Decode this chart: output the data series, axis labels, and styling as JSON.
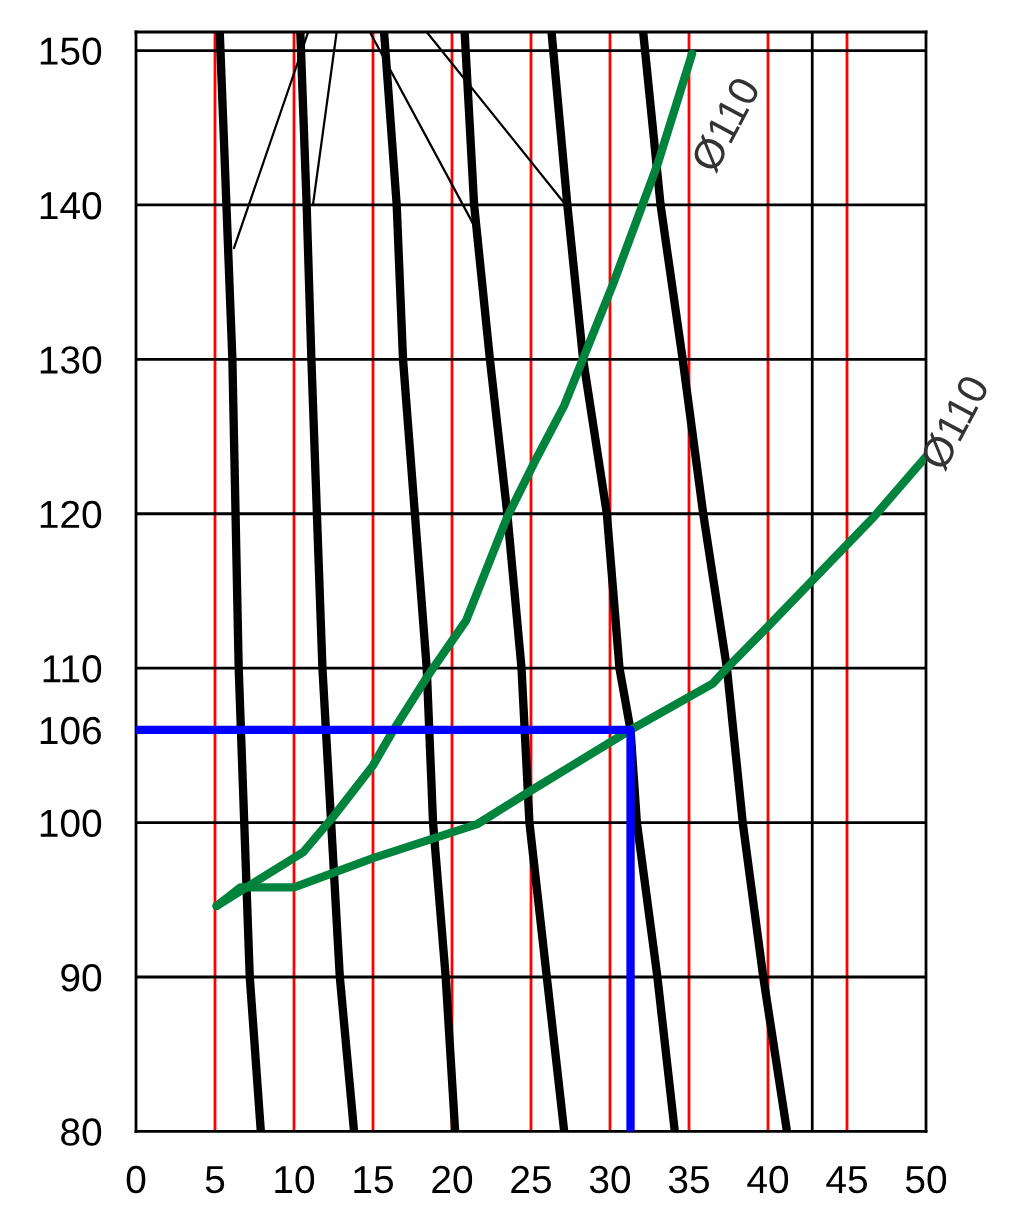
{
  "chart_data": {
    "type": "line",
    "xlim": [
      0,
      50
    ],
    "ylim": [
      80,
      151.2
    ],
    "xticks": [
      0,
      5,
      10,
      15,
      20,
      25,
      30,
      35,
      40,
      45,
      50
    ],
    "yticks": [
      80,
      90,
      100,
      106,
      110,
      120,
      130,
      140,
      150
    ],
    "grid": false,
    "legend": false,
    "marker": "none",
    "line_style": "solid",
    "ref_lines": [
      {
        "axis": "x",
        "value": 5,
        "color": "#ff0000"
      },
      {
        "axis": "x",
        "value": 10,
        "color": "#ff0000"
      },
      {
        "axis": "x",
        "value": 15,
        "color": "#ff0000"
      },
      {
        "axis": "x",
        "value": 20,
        "color": "#ff0000"
      },
      {
        "axis": "x",
        "value": 25,
        "color": "#ff0000"
      },
      {
        "axis": "x",
        "value": 30,
        "color": "#ff0000"
      },
      {
        "axis": "x",
        "value": 35,
        "color": "#ff0000"
      },
      {
        "axis": "x",
        "value": 40,
        "color": "#ff0000"
      },
      {
        "axis": "x",
        "value": 45,
        "color": "#ff0000"
      },
      {
        "axis": "x",
        "value": 42.8,
        "color": "#000000"
      },
      {
        "axis": "y",
        "value": 90,
        "color": "#000000"
      },
      {
        "axis": "y",
        "value": 100,
        "color": "#000000"
      },
      {
        "axis": "y",
        "value": 110,
        "color": "#000000"
      },
      {
        "axis": "y",
        "value": 120,
        "color": "#000000"
      },
      {
        "axis": "y",
        "value": 130,
        "color": "#000000"
      },
      {
        "axis": "y",
        "value": 140,
        "color": "#000000"
      },
      {
        "axis": "y",
        "value": 150,
        "color": "#000000"
      }
    ],
    "annotations": [
      {
        "text": "Ø110",
        "x": 35.5,
        "y": 143
      },
      {
        "text": "Ø110",
        "x": 50,
        "y": 123.7
      }
    ],
    "series": [
      {
        "color": "#000000",
        "x": [
          5.3,
          6.1,
          6.5,
          7.2,
          7.9
        ],
        "values": [
          151.2,
          130,
          110,
          90,
          80
        ]
      },
      {
        "color": "#000000",
        "x": [
          10.4,
          10.8,
          11.1,
          11.8,
          12.9,
          13.8
        ],
        "values": [
          151.2,
          140,
          130,
          110,
          90,
          80
        ]
      },
      {
        "color": "#000000",
        "x": [
          15.7,
          16.5,
          16.9,
          18.4,
          18.8,
          19.6,
          20.2
        ],
        "values": [
          151.2,
          140,
          130,
          110,
          100,
          90,
          80
        ]
      },
      {
        "color": "#000000",
        "x": [
          20.8,
          21.4,
          22.4,
          23.5,
          24.4,
          24.9,
          26.0,
          27.1
        ],
        "values": [
          151.2,
          140,
          130,
          120,
          110,
          100,
          90,
          80
        ]
      },
      {
        "color": "#000000",
        "x": [
          26.3,
          27.3,
          28.3,
          29.8,
          30.6,
          31.3,
          31.7,
          33.0,
          34.1
        ],
        "values": [
          151.2,
          140,
          130,
          120,
          110,
          106,
          100,
          90,
          80
        ]
      },
      {
        "color": "#000000",
        "x": [
          32.1,
          33.2,
          34.6,
          35.9,
          37.4,
          38.4,
          39.7,
          41.2
        ],
        "values": [
          151.2,
          140,
          130,
          120,
          110,
          100,
          90,
          80
        ]
      },
      {
        "color": "#000000",
        "x": [
          10.9,
          6.2
        ],
        "values": [
          151.2,
          137.2
        ]
      },
      {
        "color": "#000000",
        "x": [
          12.7,
          11.2
        ],
        "values": [
          151.2,
          140
        ]
      },
      {
        "color": "#000000",
        "x": [
          14.8,
          21.8
        ],
        "values": [
          151.2,
          137.9
        ]
      },
      {
        "color": "#000000",
        "x": [
          18.4,
          27.2
        ],
        "values": [
          151.2,
          140
        ]
      },
      {
        "color": "#00843d",
        "x": [
          5.1,
          10.6,
          12.5,
          15.0,
          16.3,
          18.4,
          20.9,
          23.5,
          25.2,
          27.1,
          30.2,
          33.0,
          35.2
        ],
        "values": [
          94.6,
          98.1,
          100.4,
          103.7,
          106,
          109.4,
          113.1,
          119.8,
          123.3,
          127.0,
          134.9,
          142.6,
          149.8
        ]
      },
      {
        "color": "#00843d",
        "x": [
          5.1,
          6.6,
          10.0,
          15.0,
          21.6,
          25.2,
          31.3,
          36.5,
          37.4,
          39.9,
          46.7,
          50.0
        ],
        "values": [
          94.6,
          95.8,
          95.8,
          97.7,
          99.9,
          102.2,
          106,
          109.0,
          110,
          112.6,
          119.8,
          123.7
        ]
      },
      {
        "color": "#0000ff",
        "x": [
          0,
          31.3,
          31.3
        ],
        "values": [
          106,
          106,
          80
        ]
      }
    ]
  }
}
